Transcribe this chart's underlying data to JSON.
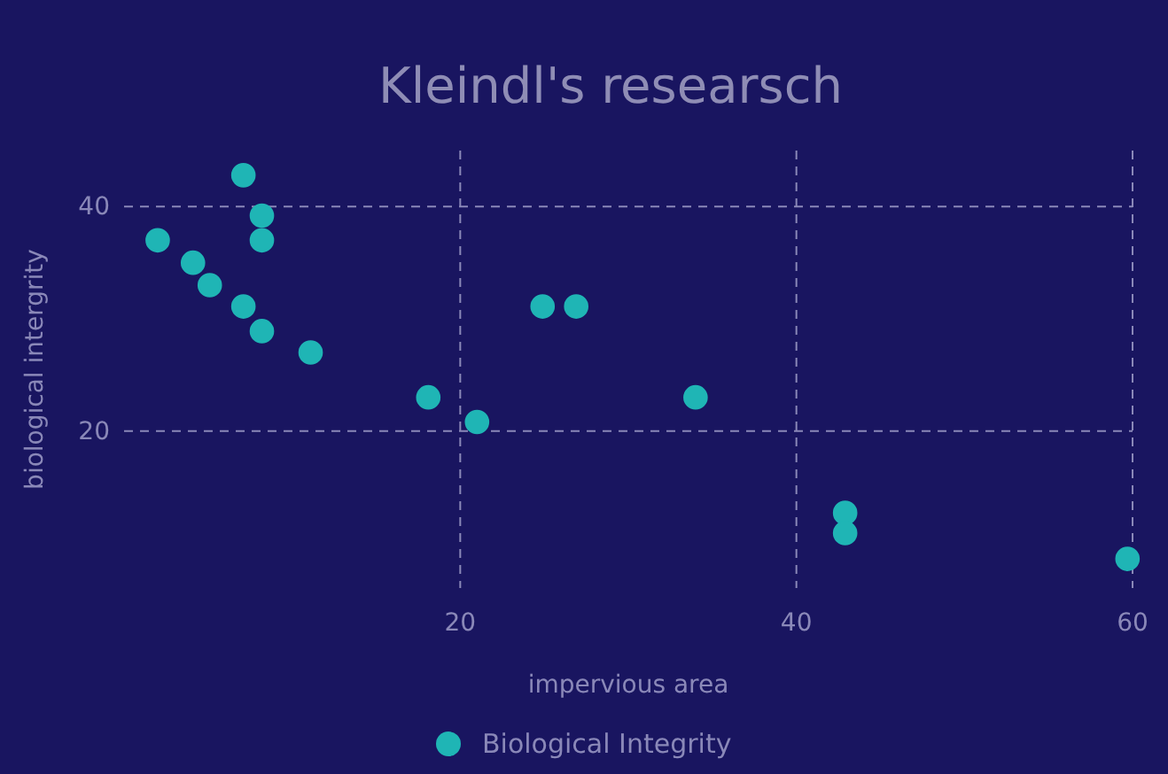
{
  "chart_data": {
    "type": "scatter",
    "title": "Kleindl's researsch",
    "xlabel": "impervious area",
    "ylabel": "biological intergrity",
    "x": [
      2.0,
      7.1,
      8.2,
      8.2,
      4.1,
      5.1,
      7.1,
      8.2,
      11.1,
      18.1,
      21.0,
      24.9,
      26.9,
      34.0,
      42.9,
      42.9,
      59.7
    ],
    "series": [
      {
        "name": "Biological Integrity",
        "color": "#1fb5b5",
        "values": [
          37.0,
          42.8,
          39.2,
          37.0,
          35.0,
          33.0,
          31.1,
          28.9,
          27.0,
          23.0,
          20.8,
          31.1,
          31.1,
          23.0,
          12.7,
          10.9,
          8.6
        ]
      }
    ],
    "xlim": [
      0,
      60
    ],
    "xticks": [
      20,
      40,
      60
    ],
    "ylim": [
      6,
      45
    ],
    "yticks": [
      20,
      40
    ],
    "grid": true,
    "marker": "circle",
    "legend": "bottom"
  }
}
